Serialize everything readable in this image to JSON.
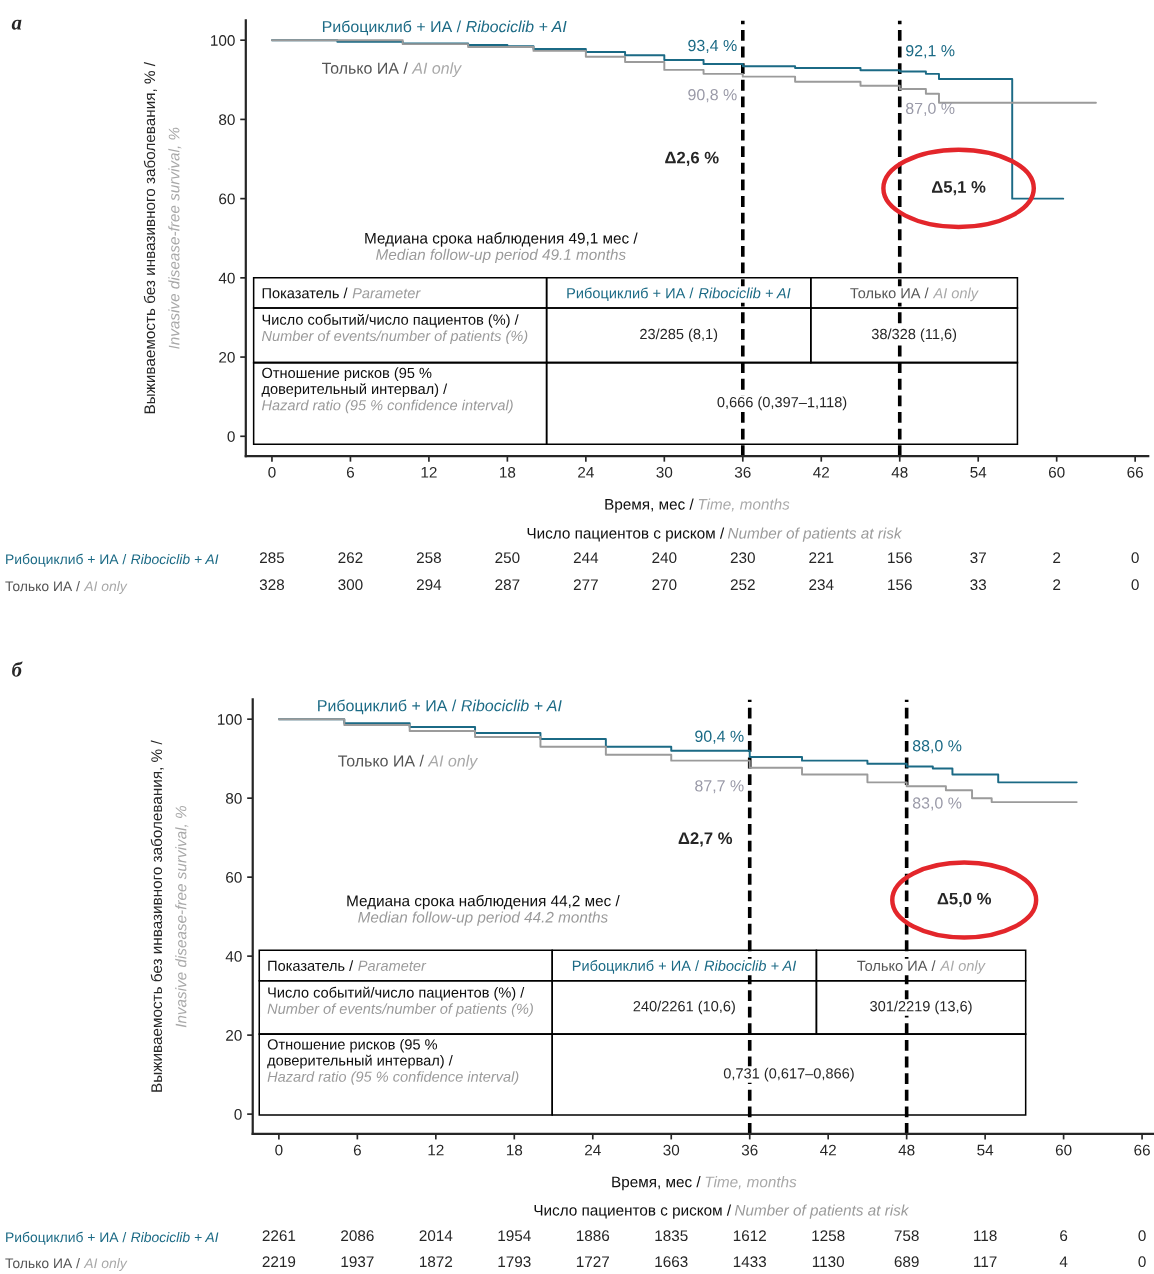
{
  "chart_data": [
    {
      "type": "step",
      "xlabel": "Время, мес / Time, months",
      "ylabel": "Выживаемость без инвазивного заболевания, % / Invasive disease-free survival, %",
      "xlim": [
        -2,
        67
      ],
      "ylim": [
        -5,
        105
      ],
      "xticks": [
        0,
        6,
        12,
        18,
        24,
        30,
        36,
        42,
        48,
        54,
        60,
        66
      ],
      "yticks": [
        0,
        20,
        40,
        60,
        80,
        100
      ],
      "series": [
        {
          "name": "Рибоциклиб + ИА / Ribociclib + AI",
          "color": "#1b6a85",
          "x": [
            0,
            5,
            10,
            15,
            18,
            20,
            24,
            27,
            30,
            33,
            36,
            40,
            45,
            48,
            50,
            51,
            56.5,
            56.6,
            60.5
          ],
          "values": [
            100,
            99.6,
            99.2,
            98.8,
            98.5,
            97.8,
            97.0,
            96.2,
            95.0,
            94.0,
            93.4,
            93.0,
            92.4,
            92.1,
            91.5,
            90.2,
            90.2,
            60,
            60
          ]
        },
        {
          "name": "Только ИА / AI only",
          "color": "#9b9b9b",
          "x": [
            0,
            10,
            15,
            20,
            24,
            27,
            30,
            33,
            36,
            40,
            45,
            48,
            50,
            51,
            63
          ],
          "values": [
            100,
            99,
            98.3,
            97.3,
            95.8,
            94.5,
            92.5,
            91.5,
            90.8,
            89.5,
            88.5,
            87.7,
            86.5,
            84.2,
            84.2
          ]
        }
      ],
      "ref_lines": [
        {
          "axis": "x",
          "value": 36,
          "color": "#000000",
          "line_style": "dashed"
        },
        {
          "axis": "x",
          "value": 48,
          "color": "#000000",
          "line_style": "dashed"
        }
      ],
      "annotations": [
        "93,4 %",
        "90,8 %",
        "92,1 %",
        "87,0 %",
        "Δ2,6 %",
        "Δ5,1 %",
        "Медиана срока наблюдения 49,1 мес / Median follow-up period 49.1 months",
        "Показатель / Parameter",
        "Рибоциклиб + ИА / Ribociclib + AI",
        "Только ИА / AI only",
        "Число событий/число пациентов (%) / Number of events/number of patients (%)",
        "23/285 (8,1)",
        "38/328 (11,6)",
        "Отношение рисков (95 %\nдоверительный интервал) / Hazard ratio (95 % confidence interval)",
        "0,666 (0,397–1,118)",
        "Число пациентов с риском / Number of patients at risk",
        "285",
        "262",
        "258",
        "250",
        "244",
        "240",
        "230",
        "221",
        "156",
        "37",
        "2",
        "0",
        "328",
        "300",
        "294",
        "287",
        "277",
        "270",
        "252",
        "234",
        "156",
        "33",
        "2",
        "0",
        "а"
      ]
    },
    {
      "type": "step",
      "xlabel": "Время, мес / Time, months",
      "ylabel": "Выживаемость без инвазивного заболевания, % / Invasive disease-free survival, %",
      "xlim": [
        -2,
        67
      ],
      "ylim": [
        -5,
        105
      ],
      "xticks": [
        0,
        6,
        12,
        18,
        24,
        30,
        36,
        42,
        48,
        54,
        60,
        66
      ],
      "yticks": [
        0,
        20,
        40,
        60,
        80,
        100
      ],
      "series": [
        {
          "name": "Рибоциклиб + ИА / Ribociclib + AI",
          "color": "#1b6a85",
          "x": [
            0,
            5,
            10,
            15,
            20,
            25,
            30,
            36,
            40,
            45,
            48,
            50,
            51.5,
            54.3,
            55,
            61
          ],
          "values": [
            100,
            99,
            98,
            96.5,
            95,
            93,
            92,
            90.4,
            89.5,
            88.7,
            88.0,
            87.5,
            86,
            86,
            84,
            84
          ]
        },
        {
          "name": "Только ИА / AI only",
          "color": "#9b9b9b",
          "x": [
            0,
            5,
            10,
            15,
            20,
            25,
            30,
            36,
            40,
            45,
            48,
            51,
            53,
            54.5,
            61
          ],
          "values": [
            100,
            98.5,
            97,
            95.5,
            93,
            91,
            89.5,
            87.7,
            86,
            84,
            83.0,
            82,
            80,
            79,
            79
          ]
        }
      ],
      "ref_lines": [
        {
          "axis": "x",
          "value": 36,
          "color": "#000000",
          "line_style": "dashed"
        },
        {
          "axis": "x",
          "value": 48,
          "color": "#000000",
          "line_style": "dashed"
        }
      ],
      "annotations": [
        "90,4 %",
        "87,7 %",
        "88,0 %",
        "83,0 %",
        "Δ2,7 %",
        "Δ5,0 %",
        "Медиана срока наблюдения 44,2 мес / Median follow-up period 44.2 months",
        "Показатель / Parameter",
        "Рибоциклиб + ИА / Ribociclib + AI",
        "Только ИА / AI only",
        "Число событий/число пациентов (%) / Number of events/number of patients (%)",
        "240/2261 (10,6)",
        "301/2219 (13,6)",
        "Отношение рисков (95 %\nдоверительный интервал) / Hazard ratio (95 % confidence interval)",
        "0,731 (0,617–0,866)",
        "Число пациентов с риском / Number of patients at risk",
        "2261",
        "2086",
        "2014",
        "1954",
        "1886",
        "1835",
        "1612",
        "1258",
        "758",
        "118",
        "6",
        "0",
        "2219",
        "1937",
        "1872",
        "1793",
        "1727",
        "1663",
        "1433",
        "1130",
        "689",
        "117",
        "4",
        "0",
        "б"
      ]
    }
  ]
}
